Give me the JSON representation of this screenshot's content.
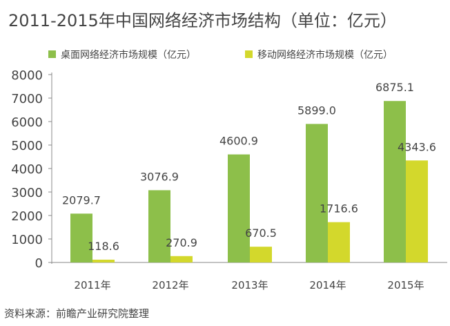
{
  "chart_data": {
    "type": "bar",
    "title": "2011-2015年中国网络经济市场结构（单位：亿元）",
    "categories": [
      "2011年",
      "2012年",
      "2013年",
      "2014年",
      "2015年"
    ],
    "series": [
      {
        "name": "桌面网络经济市场规模（亿元）",
        "color": "#8dbf4a",
        "values": [
          2079.7,
          3076.9,
          4600.9,
          5899.0,
          6875.1
        ],
        "labels": [
          "2079.7",
          "3076.9",
          "4600.9",
          "5899.0",
          "6875.1"
        ]
      },
      {
        "name": "移动网络经济市场规模（亿元）",
        "color": "#d3d82c",
        "values": [
          118.6,
          270.9,
          670.5,
          1716.6,
          4343.6
        ],
        "labels": [
          "118.6",
          "270.9",
          "670.5",
          "1716.6",
          "4343.6"
        ]
      }
    ],
    "yticks": [
      "0",
      "1000",
      "2000",
      "3000",
      "4000",
      "5000",
      "6000",
      "7000",
      "8000"
    ],
    "ylim": [
      0,
      8000
    ],
    "legend": "top",
    "source": "资料来源：前瞻产业研究院整理"
  }
}
